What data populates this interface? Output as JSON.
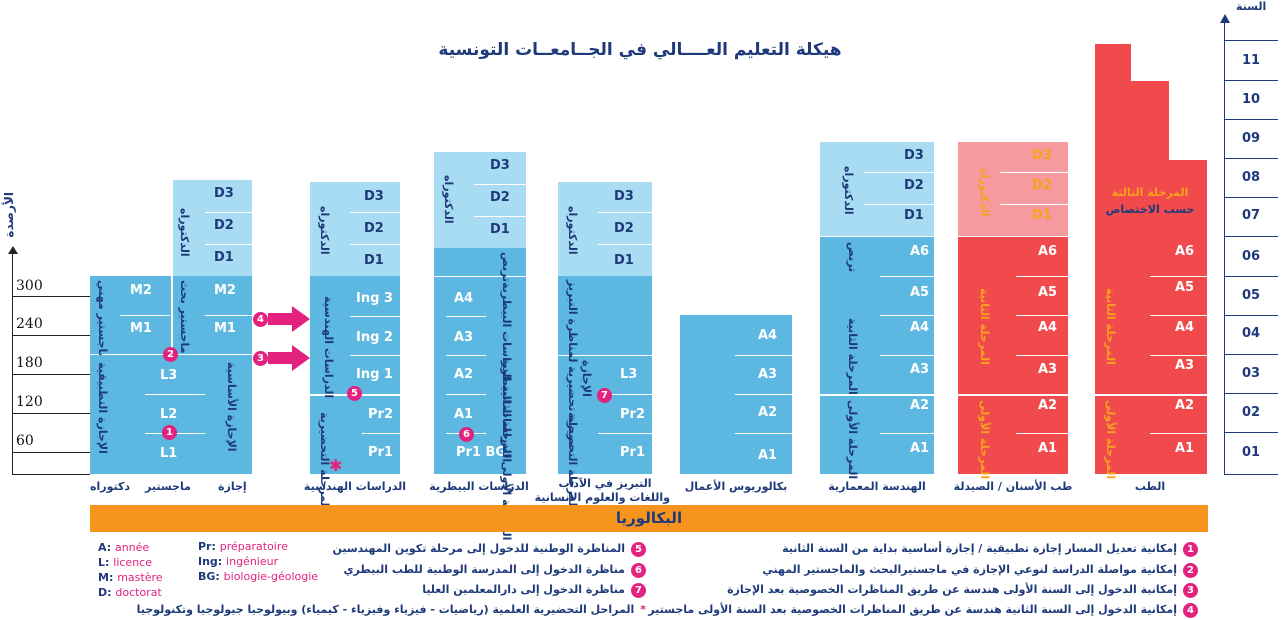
{
  "title": "هيكلة التعليم العــــالي في الجــامعــات التونسية",
  "axis": {
    "credits_label": "الأرصدة",
    "year_label": "السنة",
    "credits": [
      "300",
      "240",
      "180",
      "120",
      "60"
    ],
    "years": [
      "11",
      "10",
      "09",
      "08",
      "07",
      "06",
      "05",
      "04",
      "03",
      "02",
      "01"
    ]
  },
  "baccalaureate": "البكالوريا",
  "columns": {
    "lmd": {
      "d_labels": [
        "D3",
        "D2",
        "D1"
      ],
      "m_labels": [
        "M2",
        "M1"
      ],
      "m_labels_b": [
        "M2",
        "M1"
      ],
      "l_labels": [
        "L3",
        "L2",
        "L1"
      ],
      "doctorate_v": "الدكتوراه",
      "master_pro_v": "ماجستير مهني",
      "master_res_v": "ماجستير بحث",
      "lic_applied_v": "الإجازة التطبيقية",
      "lic_fund_v": "الإجازة الأساسية",
      "cap_doct": "دكتوراه",
      "cap_master": "ماجستير",
      "cap_lic": "إجازة"
    },
    "eng": {
      "d_labels": [
        "D3",
        "D2",
        "D1"
      ],
      "ing_labels": [
        "Ing 3",
        "Ing 2",
        "Ing 1"
      ],
      "pr_labels": [
        "Pr2",
        "Pr1"
      ],
      "doctorate_v": "الدكتوراه",
      "ing_v": "الدراسات الهندسية",
      "prep_v": "المرحلة التحضيرية",
      "caption": "الدراسات الهندسية"
    },
    "vet": {
      "d_labels": [
        "D3",
        "D2",
        "D1"
      ],
      "a_labels": [
        "A4",
        "A3",
        "A2",
        "A1",
        "Pr1 BG"
      ],
      "doctorate_v": "الدكتوراه",
      "residency_v": "تربص",
      "cycle2_v": "المرحلة الثانية الدراسات البيطرية",
      "cycle1_v": "المرحلة الأولى الدراسات البيطرية",
      "caption": "الدراسات البيطرية"
    },
    "agreg": {
      "d_labels": [
        "D3",
        "D2",
        "D1"
      ],
      "l_labels": [
        "L3",
        "Pr2",
        "Pr1"
      ],
      "doctorate_v": "الدكتوراه",
      "prep_agreg_v": "مرحلة تحضيرية لمناظرة التبريز",
      "lic_v": "الإجازة",
      "prep_v": "المرحلة التحضيرية",
      "caption_l1": "التبريز في الآداب",
      "caption_l2": "واللغات والعلوم الانسانية"
    },
    "bba": {
      "a_labels": [
        "A4",
        "A3",
        "A2",
        "A1"
      ],
      "caption": "بكالوريوس الأعمال"
    },
    "arch": {
      "d_labels": [
        "D3",
        "D2",
        "D1"
      ],
      "a_labels": [
        "A6",
        "A5",
        "A4",
        "A3",
        "A2",
        "A1"
      ],
      "doctorate_v": "الدكتوراه",
      "residency_v": "تربص",
      "cycle2_v": "المرحلة الثانية",
      "cycle1_v": "المرحلة الأولى",
      "caption": "الهندسة المعمارية"
    },
    "dent": {
      "d_labels": [
        "D3",
        "D2",
        "D1"
      ],
      "a_labels": [
        "A6",
        "A5",
        "A4",
        "A3",
        "A2",
        "A1"
      ],
      "doctorate_v": "الدكتوراه",
      "cycle2_v": "المرحلة الثانية",
      "cycle1_v": "المرحلة الأولى",
      "caption": "طب الأسنان / الصيدلة"
    },
    "med": {
      "a_labels": [
        "A6",
        "A5",
        "A4",
        "A3",
        "A2",
        "A1"
      ],
      "cycle3_l1": "المرحلة الثالثة",
      "cycle3_l2": "حسب الاختصاص",
      "cycle2_v": "المرحلة الثانية",
      "cycle1_v": "المرحلة الأولى",
      "caption": "الطب"
    }
  },
  "badges": [
    "1",
    "2",
    "3",
    "4",
    "5",
    "6",
    "7"
  ],
  "legend_left": [
    {
      "abbr": "A:",
      "text": "année"
    },
    {
      "abbr": "L:",
      "text": "licence"
    },
    {
      "abbr": "M:",
      "text": "mastère"
    },
    {
      "abbr": "D:",
      "text": "doctorat"
    }
  ],
  "legend_mid": [
    {
      "abbr": "Pr:",
      "text": "préparatoire"
    },
    {
      "abbr": "Ing:",
      "text": "ingénieur"
    },
    {
      "abbr": "BG:",
      "text": "biologie-géologie"
    }
  ],
  "notes_center": [
    {
      "num": "5",
      "text": "المناظرة الوطنية للدخول إلى مرحلة تكوين المهندسين"
    },
    {
      "num": "6",
      "text": "مناظرة الدخول إلى المدرسة الوطنية للطب البيطري"
    },
    {
      "num": "7",
      "text": "مناظرة الدخول إلى دارالمعلمين العليا"
    },
    {
      "num": "*",
      "text": "المراحل التحضيرية العلمية (رياضيات - فيزياء وفيزياء - كيمياء) وبيولوجيا جيولوجيا وتكنولوجيا"
    }
  ],
  "notes_right": [
    {
      "num": "1",
      "text": "إمكانية تعديل المسار إجازة تطبيقية / إجازة أساسية بداية من السنة الثانية"
    },
    {
      "num": "2",
      "text": "إمكانية مواصلة الدراسة لنوعي الإجازة في ماجستيرالبحث والماجستير المهني"
    },
    {
      "num": "3",
      "text": "إمكانية الدخول إلى السنة الأولى هندسة عن طريق المناظرات الخصوصية بعد الإجازة"
    },
    {
      "num": "4",
      "text": "إمكانية الدخول إلى السنة الثانية هندسة عن طريق المناظرات الخصوصية بعد السنة الأولى ماجستير"
    }
  ],
  "colors": {
    "dark_blue": "#1e3a7a",
    "blue": "#5cb8e0",
    "light_blue": "#a8dcf2",
    "red": "#f04a4d",
    "pink": "#f59ba0",
    "orange": "#f7941d",
    "magenta": "#e2227e"
  }
}
